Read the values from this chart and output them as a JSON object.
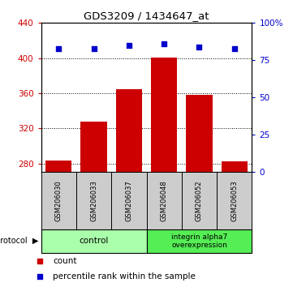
{
  "title": "GDS3209 / 1434647_at",
  "samples": [
    "GSM206030",
    "GSM206033",
    "GSM206037",
    "GSM206048",
    "GSM206052",
    "GSM206053"
  ],
  "bar_values": [
    283,
    328,
    365,
    401,
    358,
    282
  ],
  "percentile_values": [
    83,
    83,
    85,
    86,
    84,
    83
  ],
  "ylim_left": [
    270,
    440
  ],
  "ylim_right": [
    0,
    100
  ],
  "yticks_left": [
    280,
    320,
    360,
    400,
    440
  ],
  "yticks_right": [
    0,
    25,
    50,
    75,
    100
  ],
  "ytick_labels_right": [
    "0",
    "25",
    "50",
    "75",
    "100%"
  ],
  "bar_color": "#cc0000",
  "dot_color": "#0000cc",
  "bar_width": 0.75,
  "control_color": "#aaffaa",
  "integrin_color": "#55ee55",
  "control_label": "control",
  "integrin_label": "integrin alpha7\noverexpression",
  "protocol_label": "protocol",
  "legend_count_label": "count",
  "legend_pct_label": "percentile rank within the sample",
  "sample_box_color": "#cccccc",
  "grid_linestyle": "dotted"
}
